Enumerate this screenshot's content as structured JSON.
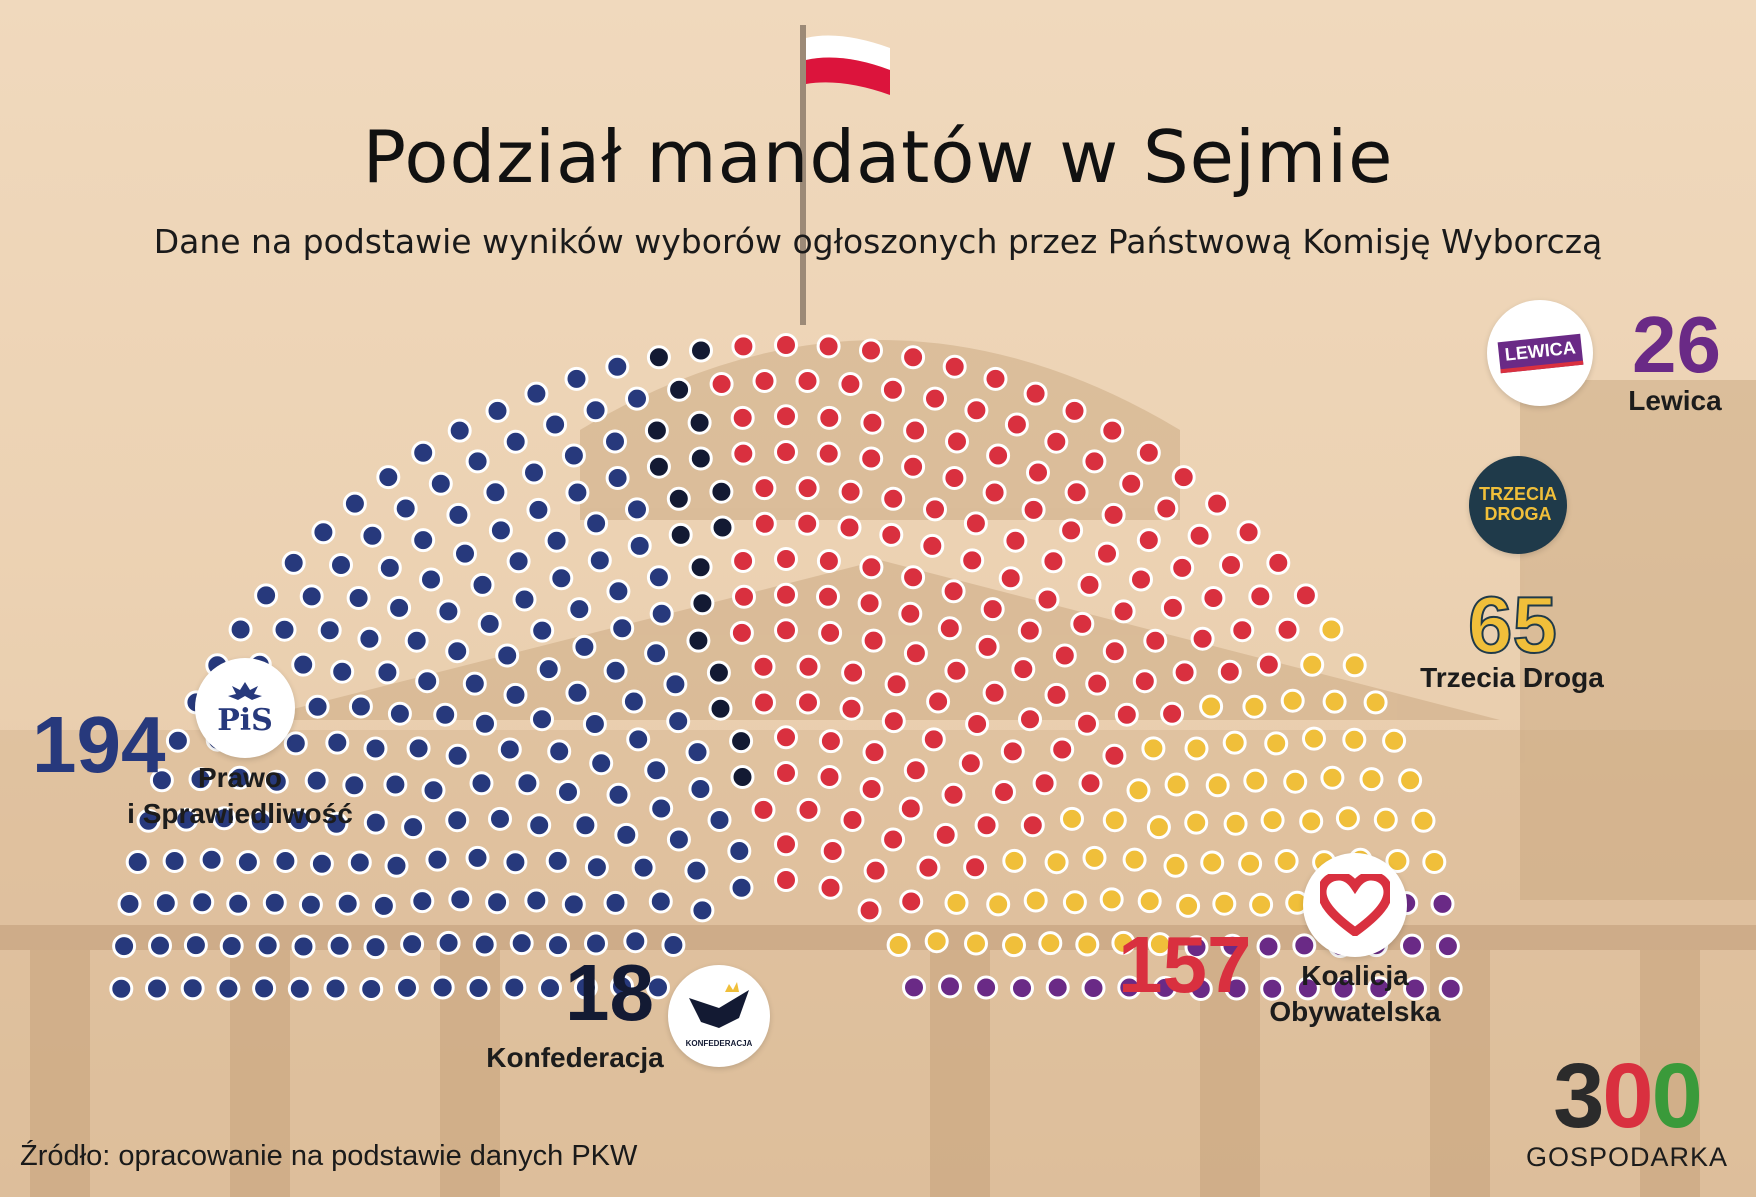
{
  "title": "Podział mandatów w Sejmie",
  "subtitle": "Dane na podstawie wyników wyborów ogłoszonych przez Państwową Komisję Wyborczą",
  "source": "Źródło: opracowanie na podstawie danych PKW",
  "brand": {
    "number": "300",
    "name": "GOSPODARKA"
  },
  "colors": {
    "pis": "#27397c",
    "konfederacja": "#131a33",
    "ko": "#d9303f",
    "td": "#f0bf3a",
    "lewica": "#6a2a86",
    "seat_border": "#ffffff"
  },
  "logos": {
    "pis": "PiS",
    "lewica": "LEWICA",
    "td": [
      "TRZECIA",
      "DROGA"
    ],
    "konfederacja": "KONFEDERACJA"
  },
  "parties": {
    "pis": {
      "seats": "194",
      "name_line1": "Prawo",
      "name_line2": "i Sprawiedliwość"
    },
    "konfederacja": {
      "seats": "18",
      "name": "Konfederacja"
    },
    "ko": {
      "seats": "157",
      "name_line1": "Koalicja",
      "name_line2": "Obywatelska"
    },
    "td": {
      "seats": "65",
      "name": "Trzecia Droga"
    },
    "lewica": {
      "seats": "26",
      "name": "Lewica"
    }
  },
  "chart_data": {
    "type": "parliament",
    "title": "Podział mandatów w Sejmie",
    "total_seats": 460,
    "series": [
      {
        "name": "Prawo i Sprawiedliwość",
        "value": 194,
        "color": "#27397c"
      },
      {
        "name": "Konfederacja",
        "value": 18,
        "color": "#131a33"
      },
      {
        "name": "Koalicja Obywatelska",
        "value": 157,
        "color": "#d9303f"
      },
      {
        "name": "Trzecia Droga",
        "value": 65,
        "color": "#f0bf3a"
      },
      {
        "name": "Lewica",
        "value": 26,
        "color": "#6a2a86"
      }
    ]
  }
}
